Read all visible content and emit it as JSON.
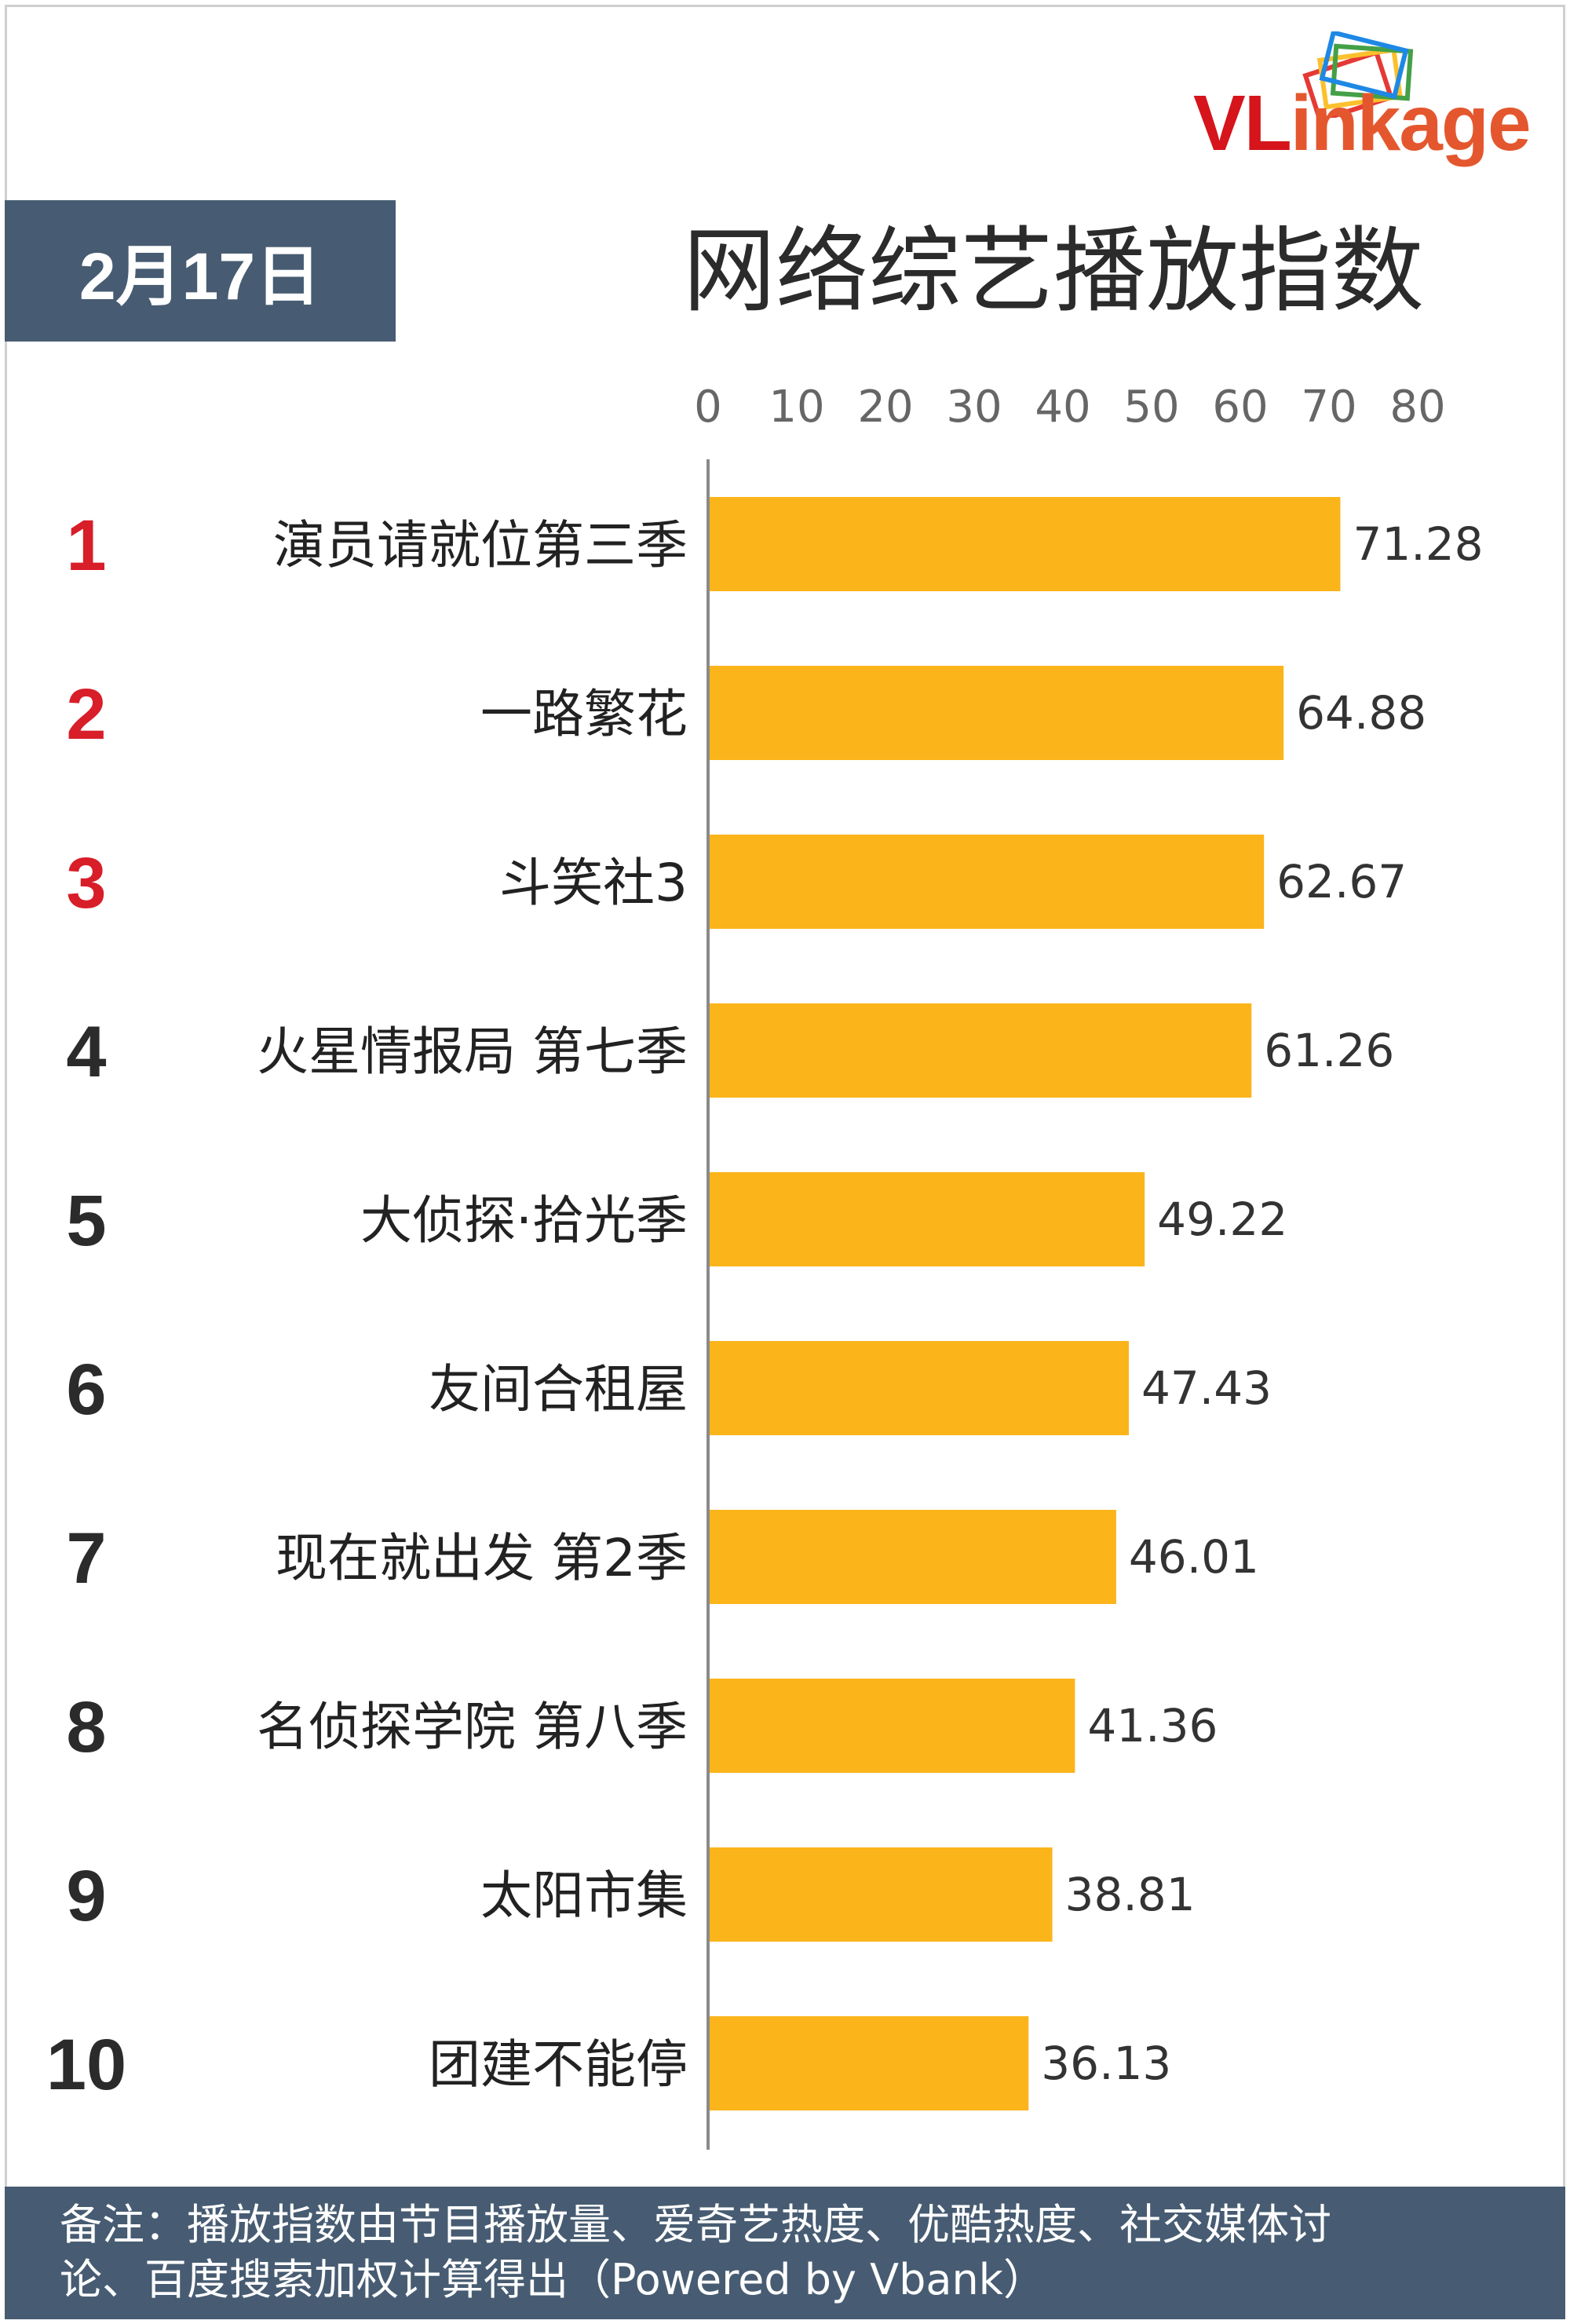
{
  "logo": {
    "text_v": "V",
    "text_l": "L",
    "text_rest": "inkage"
  },
  "date": "2月17日",
  "title": "网络综艺播放指数",
  "chart_data": {
    "type": "bar",
    "orientation": "horizontal",
    "title": "网络综艺播放指数",
    "xlim": [
      0,
      80
    ],
    "x_ticks": [
      0,
      10,
      20,
      30,
      40,
      50,
      60,
      70,
      80
    ],
    "tick_labels": [
      "0",
      "10",
      "20",
      "30",
      "40",
      "50",
      "60",
      "70",
      "80"
    ],
    "ranks": [
      "1",
      "2",
      "3",
      "4",
      "5",
      "6",
      "7",
      "8",
      "9",
      "10"
    ],
    "categories": [
      "演员请就位第三季",
      "一路繁花",
      "斗笑社3",
      "火星情报局 第七季",
      "大侦探·拾光季",
      "友间合租屋",
      "现在就出发 第2季",
      "名侦探学院 第八季",
      "太阳市集",
      "团建不能停"
    ],
    "values": [
      71.28,
      64.88,
      62.67,
      61.26,
      49.22,
      47.43,
      46.01,
      41.36,
      38.81,
      36.13
    ],
    "value_labels": [
      "71.28",
      "64.88",
      "62.67",
      "61.26",
      "49.22",
      "47.43",
      "46.01",
      "41.36",
      "38.81",
      "36.13"
    ],
    "bar_color": "#fbb41a",
    "top_rank_color": "#d81e29",
    "rank_color": "#2b2b2b",
    "grid": false,
    "legend": false
  },
  "footer": {
    "line1": "备注：播放指数由节目播放量、爱奇艺热度、优酷热度、社交媒体讨",
    "line2": "论、百度搜索加权计算得出（Powered by Vbank）"
  }
}
